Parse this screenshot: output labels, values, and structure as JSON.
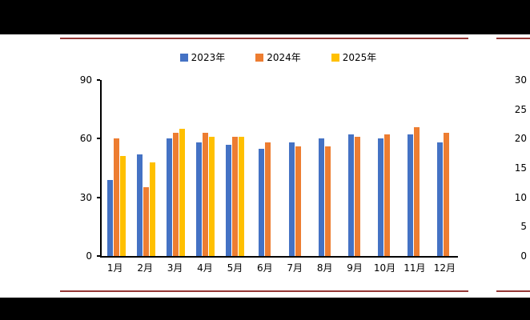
{
  "page": {
    "background_color": "#000000",
    "band_color": "#ffffff",
    "card_border_color": "#953735"
  },
  "chart_data": [
    {
      "type": "bar",
      "title": "",
      "xlabel": "",
      "ylabel": "",
      "categories": [
        "1月",
        "2月",
        "3月",
        "4月",
        "5月",
        "6月",
        "7月",
        "8月",
        "9月",
        "10月",
        "11月",
        "12月"
      ],
      "series": [
        {
          "name": "2023年",
          "color": "#4472C4",
          "values": [
            39,
            52,
            60,
            58,
            57,
            55,
            58,
            60,
            62,
            60,
            62,
            58
          ]
        },
        {
          "name": "2024年",
          "color": "#ED7D31",
          "values": [
            60,
            35,
            63,
            63,
            61,
            58,
            56,
            56,
            61,
            62,
            66,
            63
          ]
        },
        {
          "name": "2025年",
          "color": "#FFC000",
          "values": [
            51,
            48,
            65,
            61,
            61,
            null,
            null,
            null,
            null,
            null,
            null,
            null
          ]
        }
      ],
      "ylim": [
        0,
        90
      ],
      "yticks": [
        0,
        30,
        60,
        90
      ],
      "legend_position": "top",
      "grid": false
    },
    {
      "type": "bar",
      "title": "",
      "note": "partially visible chart at right edge, only y-axis tick labels shown",
      "ylim": [
        0,
        30
      ],
      "yticks_visible": [
        30,
        25,
        20,
        15,
        10,
        5,
        0
      ]
    }
  ]
}
